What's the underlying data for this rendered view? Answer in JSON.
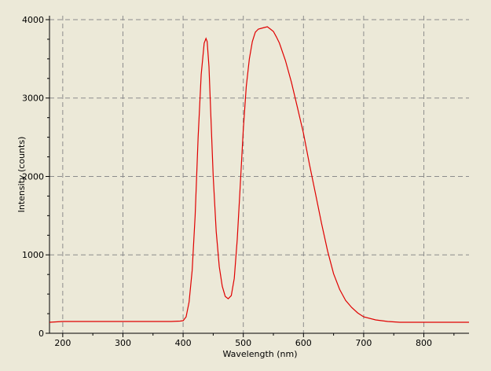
{
  "chart_data": {
    "type": "line",
    "title": "",
    "xlabel": "Wavelength (nm)",
    "ylabel": "Intensity (counts)",
    "xlim": [
      178,
      875
    ],
    "ylim": [
      0,
      4050
    ],
    "x_ticks": [
      200,
      300,
      400,
      500,
      600,
      700,
      800
    ],
    "y_ticks": [
      0,
      1000,
      2000,
      3000,
      4000
    ],
    "grid": true,
    "legend": "none",
    "series_color": "#E00000",
    "series": [
      {
        "x": [
          178,
          200,
          250,
          300,
          350,
          380,
          395,
          400,
          405,
          410,
          415,
          420,
          425,
          430,
          435,
          438,
          440,
          443,
          446,
          450,
          455,
          460,
          465,
          470,
          475,
          480,
          485,
          490,
          495,
          500,
          505,
          510,
          515,
          520,
          525,
          530,
          535,
          540,
          545,
          550,
          555,
          560,
          570,
          580,
          590,
          600,
          610,
          620,
          630,
          640,
          650,
          660,
          670,
          680,
          690,
          700,
          720,
          740,
          760,
          780,
          800,
          830,
          875
        ],
        "y": [
          140,
          150,
          150,
          150,
          150,
          150,
          155,
          160,
          210,
          400,
          800,
          1500,
          2500,
          3300,
          3700,
          3760,
          3720,
          3400,
          2800,
          2000,
          1300,
          850,
          600,
          470,
          440,
          480,
          700,
          1200,
          1900,
          2600,
          3150,
          3500,
          3720,
          3840,
          3880,
          3890,
          3900,
          3910,
          3880,
          3850,
          3780,
          3700,
          3480,
          3200,
          2880,
          2550,
          2150,
          1780,
          1400,
          1050,
          760,
          560,
          420,
          330,
          260,
          210,
          170,
          150,
          140,
          140,
          140,
          140,
          140
        ]
      }
    ]
  }
}
